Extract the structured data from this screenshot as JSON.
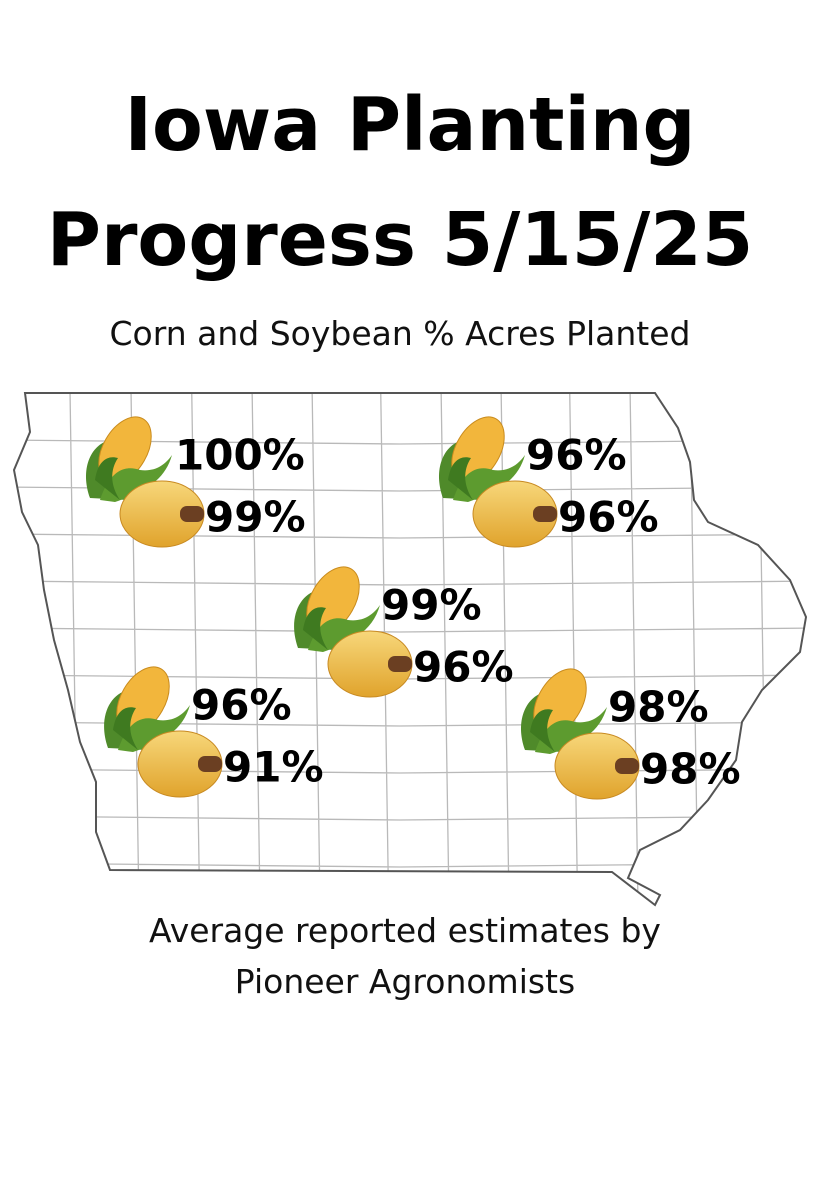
{
  "header": {
    "title_lines": [
      "Iowa Planting",
      "Progress 5/15/25"
    ],
    "subtitle": "Corn and Soybean % Acres Planted"
  },
  "map": {
    "regions": [
      {
        "corn": "100%",
        "soybean": "99%"
      },
      {
        "corn": "96%",
        "soybean": "96%"
      },
      {
        "corn": "99%",
        "soybean": "96%"
      },
      {
        "corn": "96%",
        "soybean": "91%"
      },
      {
        "corn": "98%",
        "soybean": "98%"
      }
    ]
  },
  "footer": {
    "lines": [
      "Average reported estimates by",
      "Pioneer Agronomists"
    ]
  }
}
